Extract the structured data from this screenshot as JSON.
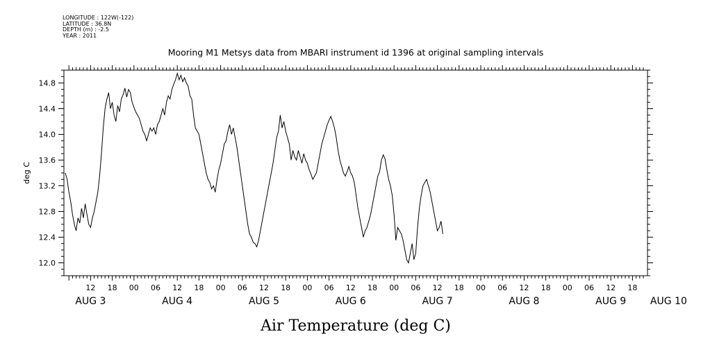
{
  "meta": {
    "longitude": "LONGITUDE : 122W(-122)",
    "latitude": "LATITUDE : 36.8N",
    "depth": "DEPTH (m) : -2.5",
    "year": "YEAR : 2011"
  },
  "chart_data": {
    "type": "line",
    "title": "Mooring M1 Metsys data from MBARI instrument id 1396 at original sampling intervals",
    "xlabel": "Air Temperature (deg C)",
    "ylabel": "deg C",
    "ylim": [
      11.8,
      15.0
    ],
    "y_ticks": [
      12.0,
      12.4,
      12.8,
      13.2,
      13.6,
      14.0,
      14.4,
      14.8
    ],
    "y_tick_labels": [
      "12.0",
      "12.4",
      "12.8",
      "13.2",
      "13.6",
      "14.0",
      "14.4",
      "14.8"
    ],
    "x_unit": "hours since 2011-08-03 00:00",
    "xlim": [
      5,
      165
    ],
    "x_tick_labels": [
      {
        "x": 12,
        "label": "12"
      },
      {
        "x": 18,
        "label": "18"
      },
      {
        "x": 24,
        "label": "00"
      },
      {
        "x": 30,
        "label": "06"
      },
      {
        "x": 36,
        "label": "12"
      },
      {
        "x": 42,
        "label": "18"
      },
      {
        "x": 48,
        "label": "00"
      },
      {
        "x": 54,
        "label": "06"
      },
      {
        "x": 60,
        "label": "12"
      },
      {
        "x": 66,
        "label": "18"
      },
      {
        "x": 72,
        "label": "00"
      },
      {
        "x": 78,
        "label": "06"
      },
      {
        "x": 84,
        "label": "12"
      },
      {
        "x": 90,
        "label": "18"
      },
      {
        "x": 96,
        "label": "00"
      },
      {
        "x": 102,
        "label": "06"
      },
      {
        "x": 108,
        "label": "12"
      },
      {
        "x": 114,
        "label": "18"
      },
      {
        "x": 120,
        "label": "00"
      },
      {
        "x": 126,
        "label": "06"
      },
      {
        "x": 132,
        "label": "12"
      },
      {
        "x": 138,
        "label": "18"
      },
      {
        "x": 144,
        "label": "00"
      },
      {
        "x": 150,
        "label": "06"
      },
      {
        "x": 156,
        "label": "12"
      },
      {
        "x": 162,
        "label": "18"
      }
    ],
    "day_labels": [
      {
        "x": 12,
        "label": "AUG  3"
      },
      {
        "x": 36,
        "label": "AUG  4"
      },
      {
        "x": 60,
        "label": "AUG  5"
      },
      {
        "x": 84,
        "label": "AUG  6"
      },
      {
        "x": 108,
        "label": "AUG  7"
      },
      {
        "x": 132,
        "label": "AUG  8"
      },
      {
        "x": 156,
        "label": "AUG  9"
      },
      {
        "x": 172,
        "label": "AUG 10"
      }
    ],
    "grid": false,
    "series": [
      {
        "color": "#000000",
        "points": [
          [
            5.0,
            13.4
          ],
          [
            5.5,
            13.3
          ],
          [
            6.0,
            13.1
          ],
          [
            6.5,
            12.95
          ],
          [
            7.0,
            12.75
          ],
          [
            7.5,
            12.6
          ],
          [
            8.0,
            12.5
          ],
          [
            8.5,
            12.7
          ],
          [
            9.0,
            12.62
          ],
          [
            9.5,
            12.85
          ],
          [
            10.0,
            12.7
          ],
          [
            10.5,
            12.92
          ],
          [
            11.0,
            12.75
          ],
          [
            11.5,
            12.6
          ],
          [
            12.0,
            12.55
          ],
          [
            12.5,
            12.7
          ],
          [
            13.0,
            12.8
          ],
          [
            13.5,
            12.95
          ],
          [
            14.0,
            13.1
          ],
          [
            14.5,
            13.35
          ],
          [
            15.0,
            13.7
          ],
          [
            15.5,
            14.1
          ],
          [
            16.0,
            14.4
          ],
          [
            16.5,
            14.55
          ],
          [
            17.0,
            14.65
          ],
          [
            17.5,
            14.4
          ],
          [
            18.0,
            14.5
          ],
          [
            18.5,
            14.3
          ],
          [
            19.0,
            14.2
          ],
          [
            19.5,
            14.45
          ],
          [
            20.0,
            14.35
          ],
          [
            20.5,
            14.55
          ],
          [
            21.0,
            14.62
          ],
          [
            21.5,
            14.72
          ],
          [
            22.0,
            14.58
          ],
          [
            22.5,
            14.7
          ],
          [
            23.0,
            14.65
          ],
          [
            23.5,
            14.5
          ],
          [
            24.0,
            14.42
          ],
          [
            24.5,
            14.35
          ],
          [
            25.0,
            14.3
          ],
          [
            25.5,
            14.25
          ],
          [
            26.0,
            14.15
          ],
          [
            26.5,
            14.05
          ],
          [
            27.0,
            14.0
          ],
          [
            27.5,
            13.9
          ],
          [
            28.0,
            14.0
          ],
          [
            28.5,
            14.1
          ],
          [
            29.0,
            14.05
          ],
          [
            29.5,
            14.1
          ],
          [
            30.0,
            14.0
          ],
          [
            30.5,
            14.15
          ],
          [
            31.0,
            14.2
          ],
          [
            31.5,
            14.3
          ],
          [
            32.0,
            14.4
          ],
          [
            32.5,
            14.3
          ],
          [
            33.0,
            14.5
          ],
          [
            33.5,
            14.6
          ],
          [
            34.0,
            14.55
          ],
          [
            34.5,
            14.7
          ],
          [
            35.0,
            14.78
          ],
          [
            35.5,
            14.85
          ],
          [
            36.0,
            14.95
          ],
          [
            36.5,
            14.85
          ],
          [
            37.0,
            14.92
          ],
          [
            37.5,
            14.82
          ],
          [
            38.0,
            14.88
          ],
          [
            38.5,
            14.8
          ],
          [
            39.0,
            14.75
          ],
          [
            39.5,
            14.6
          ],
          [
            40.0,
            14.55
          ],
          [
            40.5,
            14.3
          ],
          [
            41.0,
            14.1
          ],
          [
            41.5,
            14.05
          ],
          [
            42.0,
            14.0
          ],
          [
            42.5,
            13.85
          ],
          [
            43.0,
            13.7
          ],
          [
            43.5,
            13.55
          ],
          [
            44.0,
            13.4
          ],
          [
            44.5,
            13.3
          ],
          [
            45.0,
            13.25
          ],
          [
            45.5,
            13.15
          ],
          [
            46.0,
            13.2
          ],
          [
            46.5,
            13.1
          ],
          [
            47.0,
            13.3
          ],
          [
            47.5,
            13.45
          ],
          [
            48.0,
            13.55
          ],
          [
            48.5,
            13.7
          ],
          [
            49.0,
            13.85
          ],
          [
            49.5,
            13.9
          ],
          [
            50.0,
            14.05
          ],
          [
            50.5,
            14.15
          ],
          [
            51.0,
            14.0
          ],
          [
            51.5,
            14.1
          ],
          [
            52.0,
            13.95
          ],
          [
            52.5,
            13.8
          ],
          [
            53.0,
            13.6
          ],
          [
            53.5,
            13.4
          ],
          [
            54.0,
            13.2
          ],
          [
            54.5,
            13.0
          ],
          [
            55.0,
            12.8
          ],
          [
            55.5,
            12.6
          ],
          [
            56.0,
            12.45
          ],
          [
            56.5,
            12.4
          ],
          [
            57.0,
            12.32
          ],
          [
            57.5,
            12.3
          ],
          [
            58.0,
            12.25
          ],
          [
            58.5,
            12.35
          ],
          [
            59.0,
            12.5
          ],
          [
            59.5,
            12.65
          ],
          [
            60.0,
            12.8
          ],
          [
            60.5,
            12.95
          ],
          [
            61.0,
            13.1
          ],
          [
            61.5,
            13.25
          ],
          [
            62.0,
            13.4
          ],
          [
            62.5,
            13.55
          ],
          [
            63.0,
            13.75
          ],
          [
            63.5,
            13.95
          ],
          [
            64.0,
            14.05
          ],
          [
            64.5,
            14.3
          ],
          [
            65.0,
            14.1
          ],
          [
            65.5,
            14.2
          ],
          [
            66.0,
            14.05
          ],
          [
            66.5,
            13.95
          ],
          [
            67.0,
            13.85
          ],
          [
            67.5,
            13.6
          ],
          [
            68.0,
            13.75
          ],
          [
            68.5,
            13.65
          ],
          [
            69.0,
            13.6
          ],
          [
            69.5,
            13.75
          ],
          [
            70.0,
            13.65
          ],
          [
            70.5,
            13.55
          ],
          [
            71.0,
            13.7
          ],
          [
            71.5,
            13.6
          ],
          [
            72.0,
            13.55
          ],
          [
            72.5,
            13.45
          ],
          [
            73.0,
            13.38
          ],
          [
            73.5,
            13.3
          ],
          [
            74.0,
            13.35
          ],
          [
            74.5,
            13.4
          ],
          [
            75.0,
            13.55
          ],
          [
            75.5,
            13.7
          ],
          [
            76.0,
            13.85
          ],
          [
            76.5,
            13.95
          ],
          [
            77.0,
            14.05
          ],
          [
            77.5,
            14.15
          ],
          [
            78.0,
            14.22
          ],
          [
            78.5,
            14.28
          ],
          [
            79.0,
            14.2
          ],
          [
            79.5,
            14.1
          ],
          [
            80.0,
            13.95
          ],
          [
            80.5,
            13.75
          ],
          [
            81.0,
            13.6
          ],
          [
            81.5,
            13.5
          ],
          [
            82.0,
            13.4
          ],
          [
            82.5,
            13.35
          ],
          [
            83.0,
            13.42
          ],
          [
            83.5,
            13.5
          ],
          [
            84.0,
            13.4
          ],
          [
            84.5,
            13.35
          ],
          [
            85.0,
            13.25
          ],
          [
            85.5,
            13.05
          ],
          [
            86.0,
            12.85
          ],
          [
            86.5,
            12.7
          ],
          [
            87.0,
            12.55
          ],
          [
            87.5,
            12.4
          ],
          [
            88.0,
            12.5
          ],
          [
            88.5,
            12.55
          ],
          [
            89.0,
            12.65
          ],
          [
            89.5,
            12.75
          ],
          [
            90.0,
            12.9
          ],
          [
            90.5,
            13.05
          ],
          [
            91.0,
            13.2
          ],
          [
            91.5,
            13.35
          ],
          [
            92.0,
            13.42
          ],
          [
            92.5,
            13.6
          ],
          [
            93.0,
            13.68
          ],
          [
            93.5,
            13.62
          ],
          [
            94.0,
            13.45
          ],
          [
            94.5,
            13.3
          ],
          [
            95.0,
            13.2
          ],
          [
            95.5,
            13.05
          ],
          [
            96.0,
            12.75
          ],
          [
            96.5,
            12.35
          ],
          [
            97.0,
            12.55
          ],
          [
            97.5,
            12.5
          ],
          [
            98.0,
            12.45
          ],
          [
            98.5,
            12.35
          ],
          [
            99.0,
            12.2
          ],
          [
            99.5,
            12.05
          ],
          [
            100.0,
            12.0
          ],
          [
            100.5,
            12.15
          ],
          [
            101.0,
            12.3
          ],
          [
            101.5,
            12.05
          ],
          [
            102.0,
            12.15
          ],
          [
            102.5,
            12.55
          ],
          [
            103.0,
            12.85
          ],
          [
            103.5,
            13.05
          ],
          [
            104.0,
            13.2
          ],
          [
            104.5,
            13.25
          ],
          [
            105.0,
            13.3
          ],
          [
            105.5,
            13.2
          ],
          [
            106.0,
            13.1
          ],
          [
            106.5,
            12.95
          ],
          [
            107.0,
            12.8
          ],
          [
            107.5,
            12.65
          ],
          [
            108.0,
            12.5
          ],
          [
            108.5,
            12.55
          ],
          [
            109.0,
            12.65
          ],
          [
            109.5,
            12.45
          ]
        ]
      }
    ]
  }
}
